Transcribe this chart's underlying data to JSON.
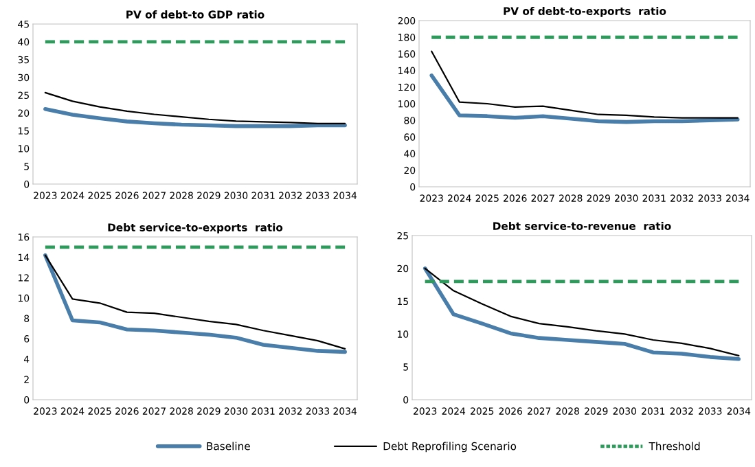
{
  "chart_data": [
    {
      "type": "line",
      "title": "PV of debt-to GDP ratio",
      "categories": [
        "2023",
        "2024",
        "2025",
        "2026",
        "2027",
        "2028",
        "2029",
        "2030",
        "2031",
        "2032",
        "2033",
        "2034"
      ],
      "ylim": [
        0,
        45
      ],
      "yticks": [
        0,
        5,
        10,
        15,
        20,
        25,
        30,
        35,
        40,
        45
      ],
      "grid": false,
      "series": [
        {
          "color": "#4a7eaa",
          "line_style": "solid",
          "values": [
            21.1,
            19.5,
            18.5,
            17.6,
            17.1,
            16.7,
            16.5,
            16.3,
            16.3,
            16.3,
            16.5,
            16.5
          ]
        },
        {
          "color": "#000000",
          "line_style": "solid",
          "values": [
            25.7,
            23.3,
            21.7,
            20.5,
            19.6,
            18.9,
            18.2,
            17.7,
            17.5,
            17.3,
            17.0,
            17.0
          ]
        },
        {
          "color": "#2e9a5c",
          "line_style": "dashed",
          "values": [
            40,
            40,
            40,
            40,
            40,
            40,
            40,
            40,
            40,
            40,
            40,
            40
          ]
        }
      ]
    },
    {
      "type": "line",
      "title": "PV of debt-to-exports  ratio",
      "categories": [
        "2023",
        "2024",
        "2025",
        "2026",
        "2027",
        "2028",
        "2029",
        "2030",
        "2031",
        "2032",
        "2033",
        "2034"
      ],
      "ylim": [
        0,
        200
      ],
      "yticks": [
        0,
        20,
        40,
        60,
        80,
        100,
        120,
        140,
        160,
        180,
        200
      ],
      "grid": false,
      "series": [
        {
          "color": "#4a7eaa",
          "line_style": "solid",
          "values": [
            134,
            86,
            85,
            83,
            85,
            82,
            79,
            78,
            79,
            79,
            80,
            81
          ]
        },
        {
          "color": "#000000",
          "line_style": "solid",
          "values": [
            163,
            102,
            100,
            96,
            97,
            92,
            87,
            86,
            84,
            83,
            83,
            83
          ]
        },
        {
          "color": "#2e9a5c",
          "line_style": "dashed",
          "values": [
            180,
            180,
            180,
            180,
            180,
            180,
            180,
            180,
            180,
            180,
            180,
            180
          ]
        }
      ]
    },
    {
      "type": "line",
      "title": "Debt service-to-exports  ratio",
      "categories": [
        "2023",
        "2024",
        "2025",
        "2026",
        "2027",
        "2028",
        "2029",
        "2030",
        "2031",
        "2032",
        "2033",
        "2034"
      ],
      "ylim": [
        0,
        16
      ],
      "yticks": [
        0,
        2,
        4,
        6,
        8,
        10,
        12,
        14,
        16
      ],
      "grid": false,
      "series": [
        {
          "color": "#4a7eaa",
          "line_style": "solid",
          "values": [
            14.2,
            7.8,
            7.6,
            6.9,
            6.8,
            6.6,
            6.4,
            6.1,
            5.4,
            5.1,
            4.8,
            4.7
          ]
        },
        {
          "color": "#000000",
          "line_style": "solid",
          "values": [
            14.2,
            9.9,
            9.5,
            8.6,
            8.5,
            8.1,
            7.7,
            7.4,
            6.8,
            6.3,
            5.8,
            5.0
          ]
        },
        {
          "color": "#2e9a5c",
          "line_style": "dashed",
          "values": [
            15,
            15,
            15,
            15,
            15,
            15,
            15,
            15,
            15,
            15,
            15,
            15
          ]
        }
      ]
    },
    {
      "type": "line",
      "title": "Debt service-to-revenue  ratio",
      "categories": [
        "2023",
        "2024",
        "2025",
        "2026",
        "2027",
        "2028",
        "2029",
        "2030",
        "2031",
        "2032",
        "2033",
        "2034"
      ],
      "ylim": [
        0,
        25
      ],
      "yticks": [
        0,
        5,
        10,
        15,
        20,
        25
      ],
      "grid": false,
      "legend": "bottom",
      "series": [
        {
          "name": "Baseline",
          "color": "#4a7eaa",
          "line_style": "solid",
          "values": [
            20,
            13,
            11.6,
            10.1,
            9.4,
            9.1,
            8.8,
            8.5,
            7.2,
            7.0,
            6.5,
            6.2
          ]
        },
        {
          "name": "Debt Reprofiling Scenario",
          "color": "#000000",
          "line_style": "solid",
          "values": [
            20,
            16.6,
            14.6,
            12.7,
            11.6,
            11.1,
            10.5,
            10.0,
            9.1,
            8.6,
            7.8,
            6.7
          ]
        },
        {
          "name": "Threshold",
          "color": "#2e9a5c",
          "line_style": "dashed",
          "values": [
            18,
            18,
            18,
            18,
            18,
            18,
            18,
            18,
            18,
            18,
            18,
            18
          ]
        }
      ]
    }
  ]
}
